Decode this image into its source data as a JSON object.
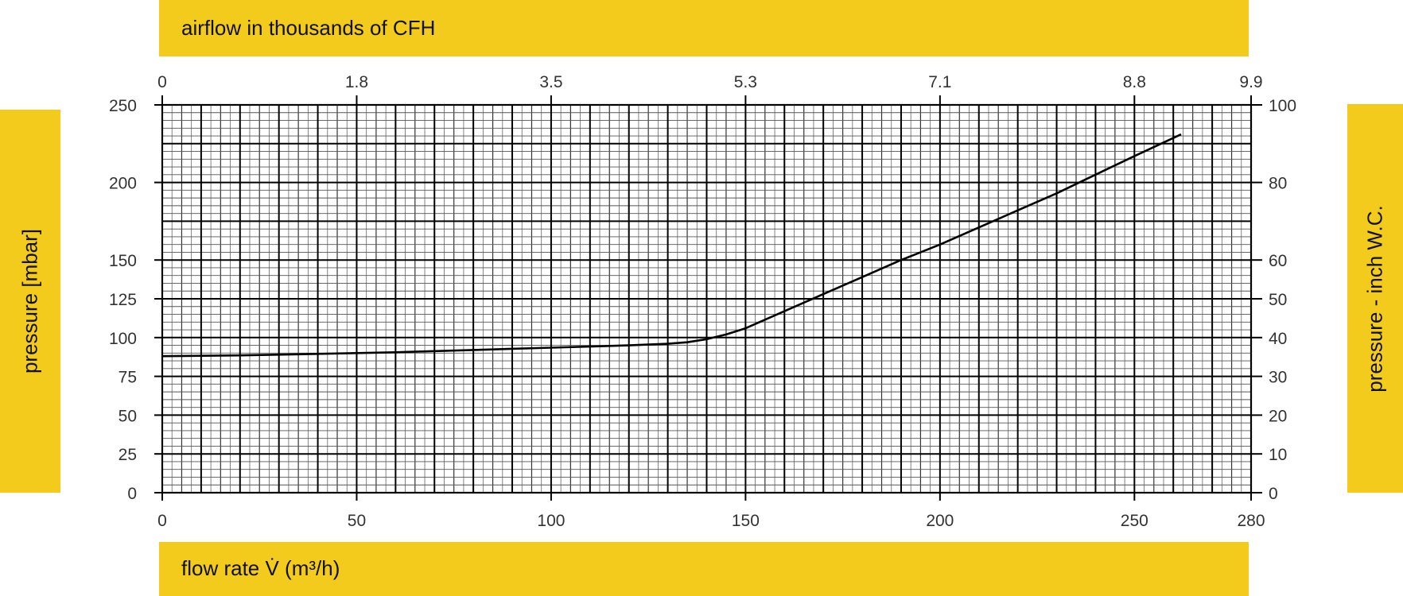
{
  "labels": {
    "top": "airflow in thousands of CFH",
    "bottom": "flow rate V̇ (m³/h)",
    "left": "pressure [mbar]",
    "right": "pressure - inch W.C."
  },
  "colors": {
    "band": "#f2cb1d",
    "grid": "#000000",
    "curve": "#000000"
  },
  "chart_data": {
    "type": "line",
    "title": "",
    "xlabel": "flow rate V̇ (m³/h)",
    "ylabel": "pressure [mbar]",
    "xlim": [
      0,
      280
    ],
    "ylim": [
      0,
      250
    ],
    "grid": true,
    "x_ticks": [
      0,
      50,
      100,
      150,
      200,
      250,
      280
    ],
    "x_tick_labels": [
      "0",
      "50",
      "100",
      "150",
      "200",
      "250",
      "280"
    ],
    "y_ticks": [
      0,
      25,
      50,
      75,
      100,
      125,
      150,
      200,
      250
    ],
    "y_tick_labels": [
      "0",
      "25",
      "50",
      "75",
      "100",
      "125",
      "150",
      "200",
      "250"
    ],
    "top_axis": {
      "label": "airflow in thousands of CFH",
      "tick_labels": [
        "0",
        "1.8",
        "3.5",
        "5.3",
        "7.1",
        "8.8",
        "9.9"
      ],
      "tick_positions_m3h": [
        0,
        50,
        100,
        150,
        200,
        250,
        280
      ]
    },
    "right_axis": {
      "label": "pressure - inch W.C.",
      "tick_labels": [
        "0",
        "10",
        "20",
        "30",
        "40",
        "50",
        "60",
        "80",
        "100"
      ],
      "tick_positions_mbar": [
        0,
        25,
        50,
        75,
        100,
        125,
        150,
        200,
        250
      ]
    },
    "series": [
      {
        "x": [
          0,
          20,
          40,
          60,
          80,
          100,
          120,
          130,
          135,
          140,
          145,
          150,
          160,
          170,
          180,
          190,
          200,
          210,
          220,
          230,
          240,
          250,
          262
        ],
        "y": [
          88,
          88.5,
          89.5,
          90.5,
          92,
          93.5,
          95,
          96,
          97,
          99,
          102,
          106,
          117,
          128,
          139,
          150,
          160,
          171,
          182,
          193,
          205,
          217,
          231
        ]
      }
    ]
  }
}
